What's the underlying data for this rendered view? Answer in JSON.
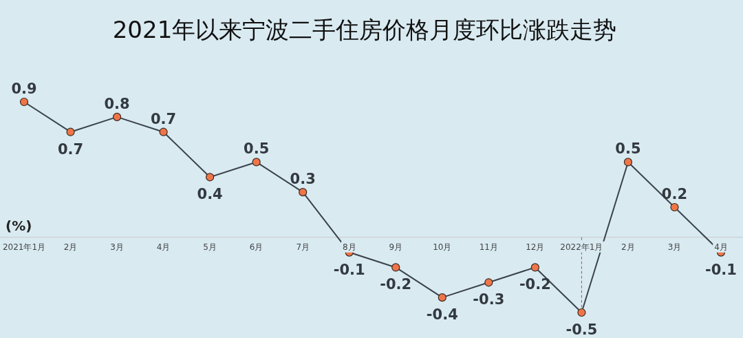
{
  "chart_data": {
    "type": "line",
    "title": "2021年以来宁波二手住房价格月度环比涨跌走势",
    "ylabel": "(%)",
    "categories": [
      "2021年1月",
      "2月",
      "3月",
      "4月",
      "5月",
      "6月",
      "7月",
      "8月",
      "9月",
      "10月",
      "11月",
      "12月",
      "2022年1月",
      "2月",
      "3月",
      "4月"
    ],
    "series": [
      {
        "color": "#3a424a",
        "values": [
          0.9,
          0.7,
          0.8,
          0.7,
          0.4,
          0.5,
          0.3,
          -0.1,
          -0.2,
          -0.4,
          -0.3,
          -0.2,
          -0.5,
          0.5,
          0.2,
          -0.1
        ]
      }
    ],
    "marker": "circle",
    "data_labels": true,
    "ref_lines": [
      {
        "axis": "x",
        "value": "2022年1月",
        "color": "#e03a3a",
        "line_style": "dashed"
      }
    ]
  }
}
